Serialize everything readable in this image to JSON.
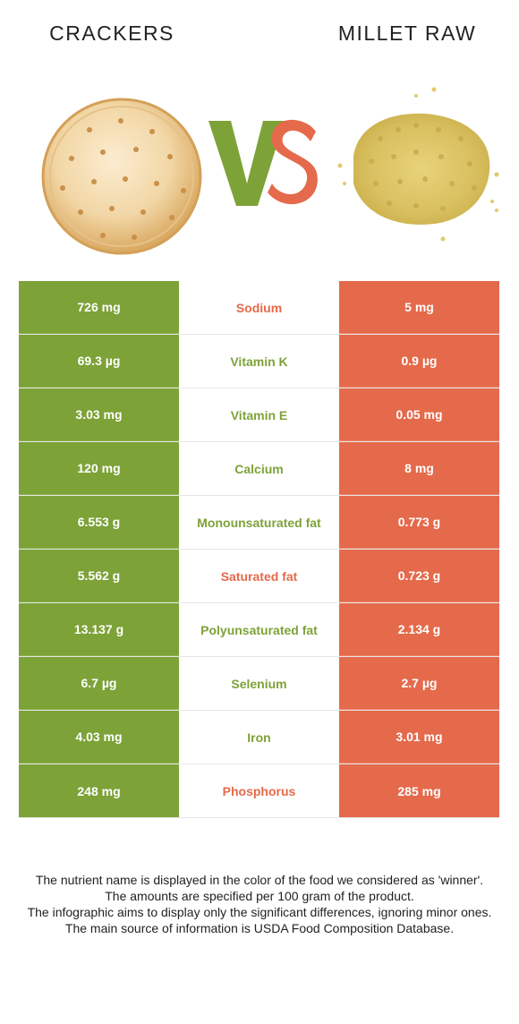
{
  "header": {
    "left_food": "CRACKERS",
    "right_food": "MILLET RAW",
    "vs_v": "V",
    "vs_s": "S"
  },
  "colors": {
    "winner_left": "#7da238",
    "winner_right": "#e46a4b"
  },
  "rows": [
    {
      "nutrient": "Sodium",
      "left": "726 mg",
      "right": "5 mg",
      "winner": "right"
    },
    {
      "nutrient": "Vitamin K",
      "left": "69.3 µg",
      "right": "0.9 µg",
      "winner": "left"
    },
    {
      "nutrient": "Vitamin E",
      "left": "3.03 mg",
      "right": "0.05 mg",
      "winner": "left"
    },
    {
      "nutrient": "Calcium",
      "left": "120 mg",
      "right": "8 mg",
      "winner": "left"
    },
    {
      "nutrient": "Monounsaturated fat",
      "left": "6.553 g",
      "right": "0.773 g",
      "winner": "left"
    },
    {
      "nutrient": "Saturated fat",
      "left": "5.562 g",
      "right": "0.723 g",
      "winner": "right"
    },
    {
      "nutrient": "Polyunsaturated fat",
      "left": "13.137 g",
      "right": "2.134 g",
      "winner": "left"
    },
    {
      "nutrient": "Selenium",
      "left": "6.7 µg",
      "right": "2.7 µg",
      "winner": "left"
    },
    {
      "nutrient": "Iron",
      "left": "4.03 mg",
      "right": "3.01 mg",
      "winner": "left"
    },
    {
      "nutrient": "Phosphorus",
      "left": "248 mg",
      "right": "285 mg",
      "winner": "right"
    }
  ],
  "footer": {
    "line1": "The nutrient name is displayed in the color of the food we considered as 'winner'.",
    "line2": "The amounts are specified per 100 gram of the product.",
    "line3": "The infographic aims to display only the significant differences, ignoring minor ones.",
    "line4": "The main source of information is USDA Food Composition Database."
  }
}
